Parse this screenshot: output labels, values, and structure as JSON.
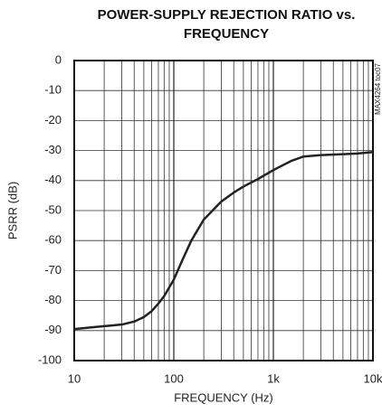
{
  "chart_data": {
    "type": "line",
    "title": "POWER-SUPPLY REJECTION RATIO vs. FREQUENCY",
    "x_label": "FREQUENCY (Hz)",
    "y_label": "PSRR (dB)",
    "figure_code": "MAX4264 toc07",
    "x_scale": "log",
    "grid": true,
    "x_minor_grid": true,
    "xlim": [
      10,
      10000
    ],
    "xticks": [
      10,
      100,
      {
        "value": 1000,
        "label": "1k"
      },
      {
        "value": 10000,
        "label": "10k"
      }
    ],
    "ylim": [
      -100,
      0
    ],
    "yticks": [
      0,
      -10,
      -20,
      -30,
      -40,
      -50,
      -60,
      -70,
      -80,
      -90,
      -100
    ],
    "x": [
      10,
      20,
      30,
      40,
      50,
      60,
      70,
      80,
      100,
      120,
      150,
      200,
      300,
      400,
      500,
      700,
      1000,
      1500,
      2000,
      3000,
      5000,
      7000,
      10000
    ],
    "series": [
      {
        "color": "#222222",
        "values": [
          -89.5,
          -88.5,
          -88,
          -87,
          -85.5,
          -83.5,
          -81,
          -78.5,
          -73,
          -67,
          -60,
          -53,
          -47,
          -44,
          -42,
          -39.5,
          -36.5,
          -33.5,
          -32,
          -31.5,
          -31.2,
          -31,
          -30.5
        ]
      }
    ]
  }
}
